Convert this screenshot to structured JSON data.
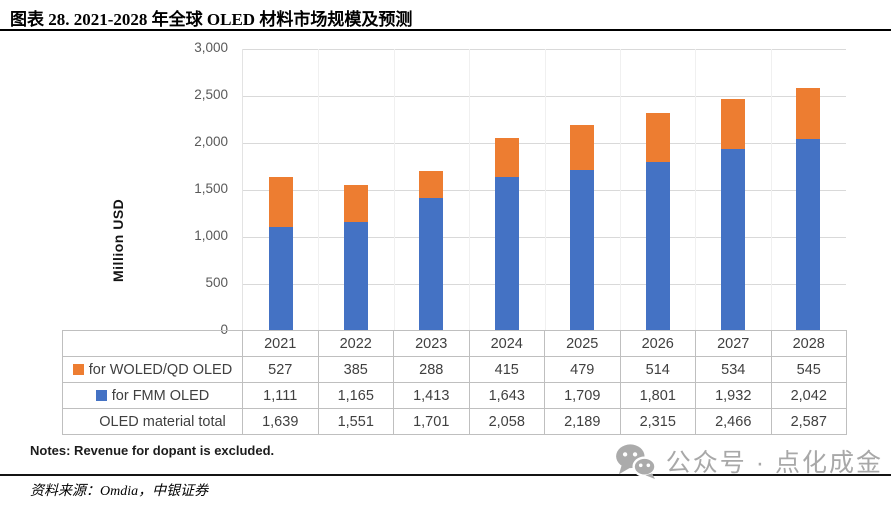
{
  "title": "图表 28. 2021-2028 年全球 OLED 材料市场规模及预测",
  "chart_data": {
    "type": "bar",
    "stacked": true,
    "title": "图表 28. 2021-2028 年全球 OLED 材料市场规模及预测",
    "xlabel": "",
    "ylabel": "Million USD",
    "ylim": [
      0,
      3000
    ],
    "ytick_step": 500,
    "yticks": [
      "3,000",
      "2,500",
      "2,000",
      "1,500",
      "1,000",
      "500",
      "0"
    ],
    "grid": true,
    "legend_position": "table-left",
    "categories": [
      "2021",
      "2022",
      "2023",
      "2024",
      "2025",
      "2026",
      "2027",
      "2028"
    ],
    "series": [
      {
        "name": "for WOLED/QD OLED",
        "color": "#ED7D31",
        "values": [
          527,
          385,
          288,
          415,
          479,
          514,
          534,
          545
        ]
      },
      {
        "name": "for FMM OLED",
        "color": "#4472C4",
        "values": [
          1111,
          1165,
          1413,
          1643,
          1709,
          1801,
          1932,
          2042
        ]
      }
    ],
    "totals": {
      "label": "OLED material total",
      "values": [
        1639,
        1551,
        1701,
        2058,
        2189,
        2315,
        2466,
        2587
      ]
    }
  },
  "colors": {
    "woled_orange": "#ED7D31",
    "fmm_blue": "#4472C4",
    "table_border": "#bfbfbf",
    "gridline": "#d9d9d9",
    "watermark_gray": "#a8a8a8"
  },
  "notes": "Notes: Revenue for dopant is excluded.",
  "source": "资料来源：Omdia，中银证券",
  "watermark": {
    "icon": "wechat-icon",
    "text": "公众号 · 点化成金"
  }
}
